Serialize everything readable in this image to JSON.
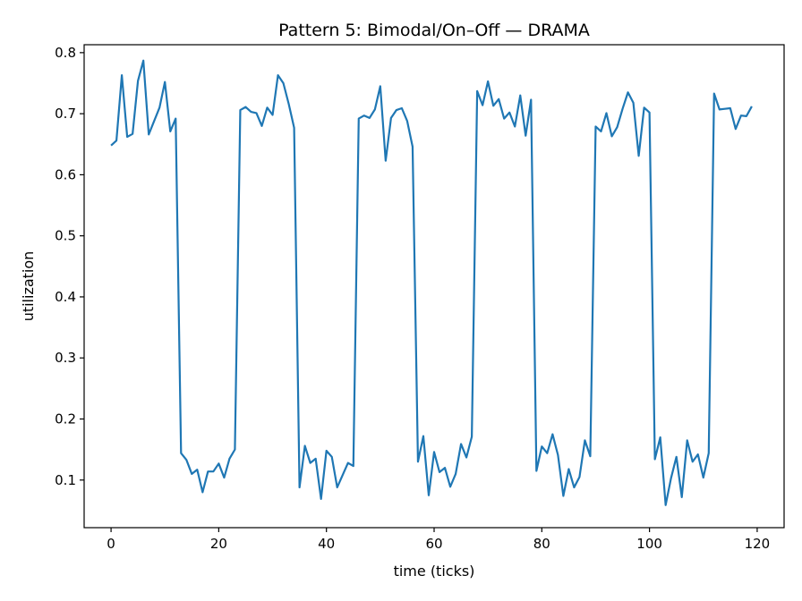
{
  "chart_data": {
    "type": "line",
    "title": "Pattern 5: Bimodal/On–Off — DRAMA",
    "xlabel": "time (ticks)",
    "ylabel": "utilization",
    "xlim": [
      -5,
      125
    ],
    "ylim": [
      0.022,
      0.813
    ],
    "xticks": [
      0,
      20,
      40,
      60,
      80,
      100,
      120
    ],
    "yticks": [
      0.1,
      0.2,
      0.3,
      0.4,
      0.5,
      0.6,
      0.7,
      0.8
    ],
    "grid": false,
    "line_color": "#1f77b4",
    "series": [
      {
        "values": [
          0.648,
          0.656,
          0.763,
          0.662,
          0.667,
          0.754,
          0.787,
          0.666,
          0.688,
          0.71,
          0.752,
          0.671,
          0.692,
          0.144,
          0.133,
          0.11,
          0.117,
          0.08,
          0.114,
          0.114,
          0.127,
          0.104,
          0.135,
          0.15,
          0.706,
          0.711,
          0.703,
          0.701,
          0.68,
          0.71,
          0.698,
          0.763,
          0.75,
          0.716,
          0.677,
          0.088,
          0.156,
          0.128,
          0.135,
          0.069,
          0.148,
          0.138,
          0.088,
          0.108,
          0.128,
          0.123,
          0.692,
          0.697,
          0.693,
          0.707,
          0.745,
          0.623,
          0.693,
          0.706,
          0.709,
          0.688,
          0.646,
          0.13,
          0.172,
          0.075,
          0.146,
          0.113,
          0.12,
          0.089,
          0.11,
          0.159,
          0.137,
          0.171,
          0.737,
          0.714,
          0.753,
          0.713,
          0.724,
          0.692,
          0.702,
          0.679,
          0.73,
          0.664,
          0.723,
          0.115,
          0.155,
          0.144,
          0.175,
          0.141,
          0.074,
          0.118,
          0.088,
          0.105,
          0.165,
          0.139,
          0.679,
          0.671,
          0.701,
          0.663,
          0.678,
          0.708,
          0.735,
          0.718,
          0.631,
          0.71,
          0.702,
          0.134,
          0.17,
          0.059,
          0.103,
          0.138,
          0.072,
          0.165,
          0.13,
          0.142,
          0.104,
          0.144,
          0.733,
          0.707,
          0.708,
          0.709,
          0.675,
          0.697,
          0.696,
          0.712
        ]
      }
    ]
  }
}
